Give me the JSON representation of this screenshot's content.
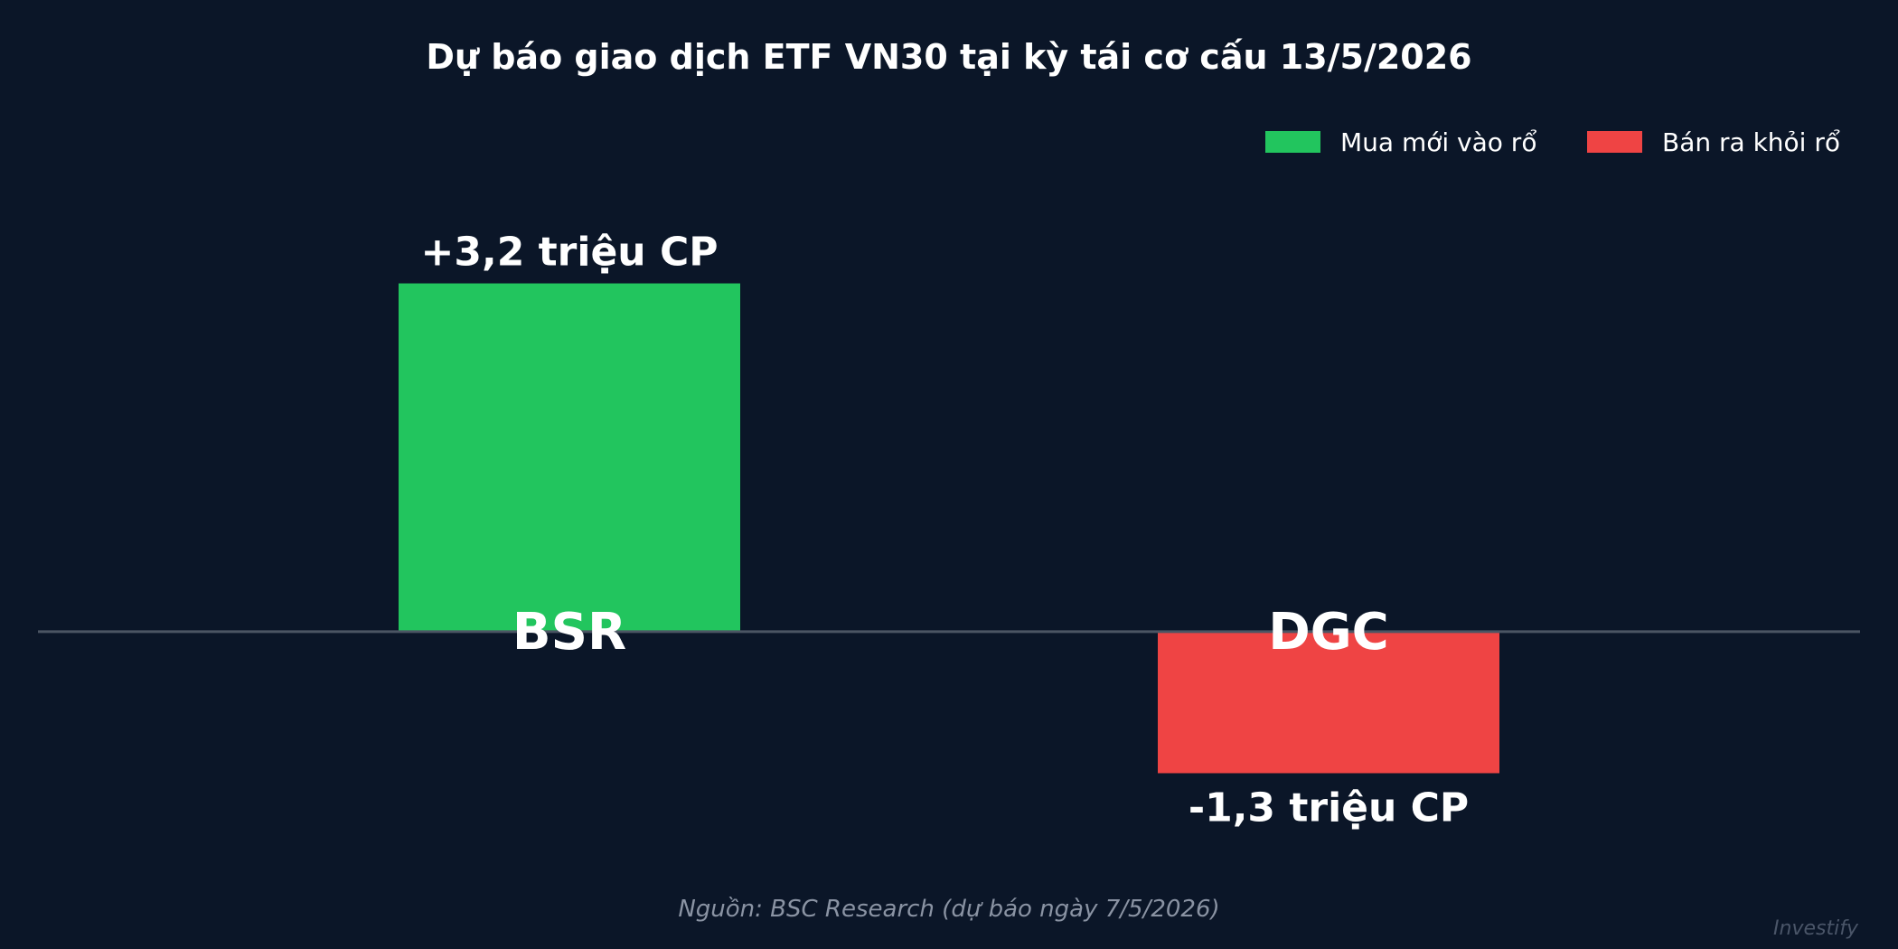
{
  "chart_data": {
    "type": "bar",
    "title": "Dự báo giao dịch ETF VN30 tại kỳ tái cơ cấu 13/5/2026",
    "categories": [
      "BSR",
      "DGC"
    ],
    "values": [
      3.2,
      -1.3
    ],
    "value_labels": [
      "+3,2 triệu CP",
      "-1,3 triệu CP"
    ],
    "unit": "triệu CP",
    "colors": [
      "#22c55e",
      "#ef4444"
    ],
    "legend": {
      "placement": "top-right",
      "entries": [
        {
          "label": "Mua mới vào rổ",
          "color": "#22c55e"
        },
        {
          "label": "Bán ra khỏi rổ",
          "color": "#ef4444"
        }
      ]
    },
    "ylim": [
      -2.5,
      4.5
    ],
    "grid": false,
    "zero_line_color": "#4b5563"
  },
  "source": "Nguồn: BSC Research (dự báo ngày 7/5/2026)",
  "watermark": "Investify",
  "colors": {
    "background": "#0b1628",
    "text": "#ffffff",
    "muted": "#8a93a3"
  }
}
